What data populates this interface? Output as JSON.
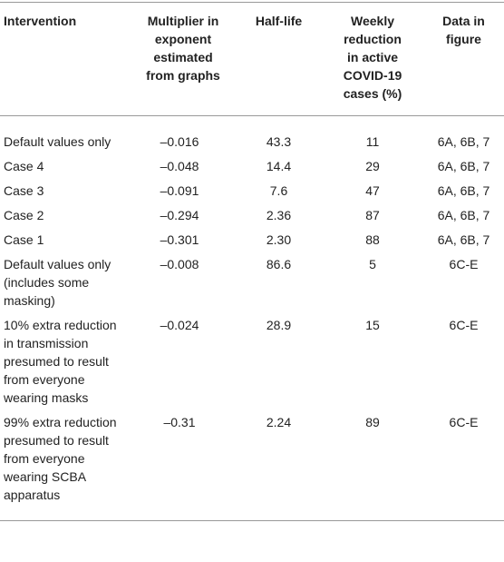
{
  "table": {
    "header": [
      "Intervention",
      "Multiplier in exponent estimated from graphs",
      "Half-life",
      "Weekly reduction in active COVID-19 cases (%)",
      "Data in figure"
    ],
    "rows": [
      [
        "Default values only",
        "–0.016",
        "43.3",
        "11",
        "6A, 6B, 7"
      ],
      [
        "Case 4",
        "–0.048",
        "14.4",
        "29",
        "6A, 6B, 7"
      ],
      [
        "Case 3",
        "–0.091",
        "7.6",
        "47",
        "6A, 6B, 7"
      ],
      [
        "Case 2",
        "–0.294",
        "2.36",
        "87",
        "6A, 6B, 7"
      ],
      [
        "Case 1",
        "–0.301",
        "2.30",
        "88",
        "6A, 6B, 7"
      ],
      [
        "Default values only (includes some masking)",
        "–0.008",
        "86.6",
        "5",
        "6C-E"
      ],
      [
        "10% extra reduction in transmission presumed to result from everyone wearing masks",
        "–0.024",
        "28.9",
        "15",
        "6C-E"
      ],
      [
        "99% extra reduction presumed to result from everyone wearing SCBA apparatus",
        "–0.31",
        "2.24",
        "89",
        "6C-E"
      ]
    ]
  }
}
